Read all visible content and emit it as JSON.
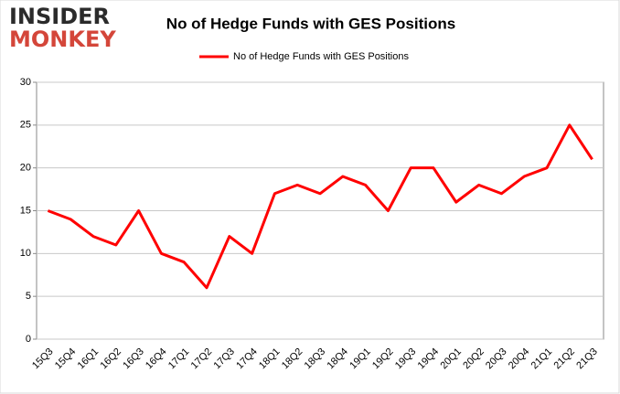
{
  "logo": {
    "line1": "INSIDER",
    "line2": "MONKEY"
  },
  "chart_data": {
    "type": "line",
    "title": "No of Hedge Funds with GES Positions",
    "categories": [
      "15Q3",
      "15Q4",
      "16Q1",
      "16Q2",
      "16Q3",
      "16Q4",
      "17Q1",
      "17Q2",
      "17Q3",
      "17Q4",
      "18Q1",
      "18Q2",
      "18Q3",
      "18Q4",
      "19Q1",
      "19Q2",
      "19Q3",
      "19Q4",
      "20Q1",
      "20Q2",
      "20Q3",
      "20Q4",
      "21Q1",
      "21Q2",
      "21Q3"
    ],
    "series": [
      {
        "name": "No of Hedge Funds with GES Positions",
        "color": "#ff0000",
        "values": [
          15,
          14,
          12,
          11,
          15,
          10,
          9,
          6,
          12,
          10,
          17,
          18,
          17,
          19,
          18,
          15,
          20,
          20,
          16,
          18,
          17,
          19,
          20,
          25,
          21
        ]
      }
    ],
    "ylim": [
      0,
      30
    ],
    "yticks": [
      0,
      5,
      10,
      15,
      20,
      25,
      30
    ],
    "grid": true,
    "legend": "top"
  }
}
